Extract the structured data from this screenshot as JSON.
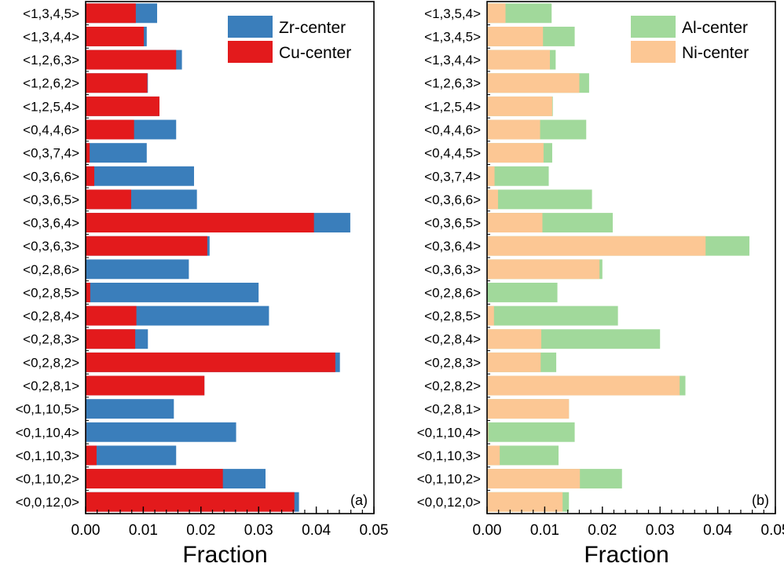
{
  "chart_data": [
    {
      "type": "bar",
      "orientation": "horizontal",
      "panel_label": "(a)",
      "xlabel": "Fraction",
      "ylabel": "",
      "xlim": [
        0,
        0.05
      ],
      "x_ticks": [
        "0.00",
        "0.01",
        "0.02",
        "0.03",
        "0.04",
        "0.05"
      ],
      "x_tick_values": [
        0,
        0.01,
        0.02,
        0.03,
        0.04,
        0.05
      ],
      "minor_tick_step": 0.002,
      "grid": false,
      "legend_position": "top-right",
      "categories": [
        "<1,3,4,5>",
        "<1,3,4,4>",
        "<1,2,6,3>",
        "<1,2,6,2>",
        "<1,2,5,4>",
        "<0,4,4,6>",
        "<0,3,7,4>",
        "<0,3,6,6>",
        "<0,3,6,5>",
        "<0,3,6,4>",
        "<0,3,6,3>",
        "<0,2,8,6>",
        "<0,2,8,5>",
        "<0,2,8,4>",
        "<0,2,8,3>",
        "<0,2,8,2>",
        "<0,2,8,1>",
        "<0,1,10,5>",
        "<0,1,10,4>",
        "<0,1,10,3>",
        "<0,1,10,2>",
        "<0,0,12,0>"
      ],
      "series": [
        {
          "name": "Zr-center",
          "color": "#3a7ebb",
          "values": [
            0.0124,
            0.0106,
            0.0167,
            0.0108,
            0.0128,
            0.0157,
            0.0106,
            0.0188,
            0.0193,
            0.0459,
            0.0215,
            0.0179,
            0.03,
            0.0318,
            0.0108,
            0.0441,
            0.0206,
            0.0153,
            0.0261,
            0.0157,
            0.0312,
            0.037
          ]
        },
        {
          "name": "Cu-center",
          "color": "#e31a1c",
          "values": [
            0.0087,
            0.0101,
            0.0157,
            0.0107,
            0.0128,
            0.0084,
            0.0007,
            0.0015,
            0.0079,
            0.0396,
            0.0211,
            0.0,
            0.0008,
            0.0088,
            0.0086,
            0.0433,
            0.0206,
            0.0,
            0.0001,
            0.0019,
            0.0238,
            0.0362
          ]
        }
      ]
    },
    {
      "type": "bar",
      "orientation": "horizontal",
      "panel_label": "(b)",
      "xlabel": "Fraction",
      "ylabel": "",
      "xlim": [
        0,
        0.05
      ],
      "x_ticks": [
        "0.00",
        "0.01",
        "0.02",
        "0.03",
        "0.04",
        "0.05"
      ],
      "x_tick_values": [
        0,
        0.01,
        0.02,
        0.03,
        0.04,
        0.05
      ],
      "minor_tick_step": 0.002,
      "grid": false,
      "legend_position": "top-right",
      "categories": [
        "<1,3,5,4>",
        "<1,3,4,5>",
        "<1,3,4,4>",
        "<1,2,6,3>",
        "<1,2,5,4>",
        "<0,4,4,6>",
        "<0,4,4,5>",
        "<0,3,7,4>",
        "<0,3,6,6>",
        "<0,3,6,5>",
        "<0,3,6,4>",
        "<0,3,6,3>",
        "<0,2,8,6>",
        "<0,2,8,5>",
        "<0,2,8,4>",
        "<0,2,8,3>",
        "<0,2,8,2>",
        "<0,2,8,1>",
        "<0,1,10,4>",
        "<0,1,10,3>",
        "<0,1,10,2>",
        "<0,0,12,0>"
      ],
      "series": [
        {
          "name": "Al-center",
          "color": "#a1d99b",
          "values": [
            0.0112,
            0.0152,
            0.0119,
            0.0177,
            0.0114,
            0.0172,
            0.0113,
            0.0107,
            0.0182,
            0.0218,
            0.0455,
            0.02,
            0.0122,
            0.0227,
            0.03,
            0.012,
            0.0344,
            0.0142,
            0.0152,
            0.0124,
            0.0234,
            0.0142
          ]
        },
        {
          "name": "Ni-center",
          "color": "#fcc794",
          "values": [
            0.0032,
            0.0097,
            0.0109,
            0.016,
            0.0113,
            0.0092,
            0.0098,
            0.0013,
            0.0019,
            0.0096,
            0.0379,
            0.0195,
            0.0,
            0.0012,
            0.0094,
            0.0093,
            0.0334,
            0.0142,
            0.0002,
            0.0022,
            0.0161,
            0.0131
          ]
        }
      ]
    }
  ]
}
